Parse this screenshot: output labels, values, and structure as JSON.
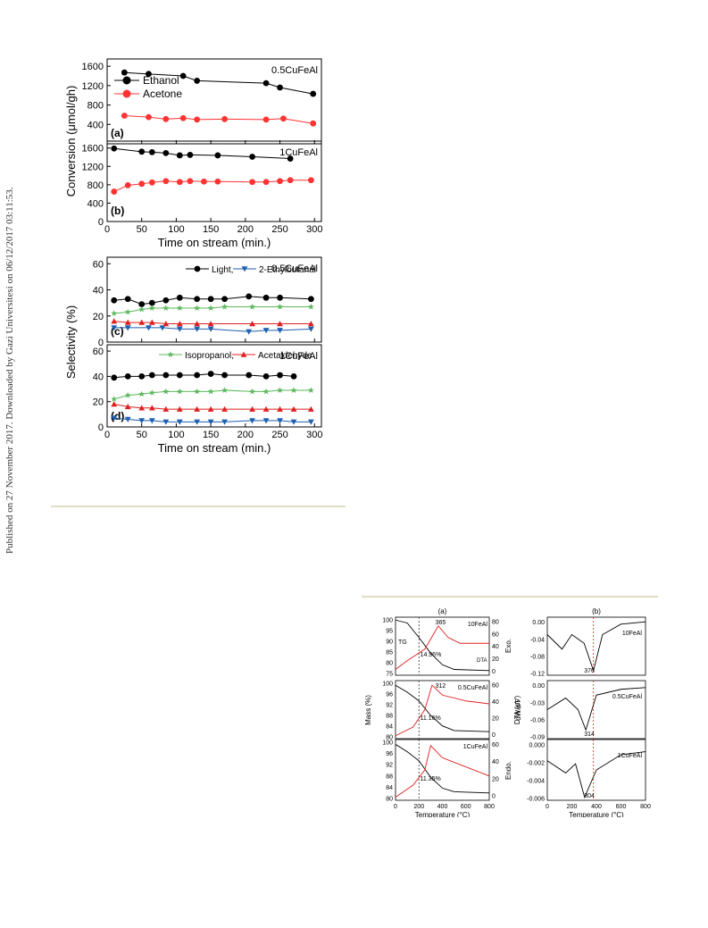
{
  "side_note": "Published on 27 November 2017. Downloaded by Gazi Universitesi on 06/12/2017 03:11:53.",
  "fig1": {
    "panels": [
      {
        "label": "(a)",
        "sample": "0.5CuFeAl",
        "yticks": [
          400,
          800,
          1200,
          1600
        ],
        "ylim": [
          0,
          1750
        ],
        "series": [
          {
            "name": "Ethanol",
            "color": "#000000",
            "marker": "circle",
            "x": [
              25,
              60,
              110,
              130,
              230,
              250,
              298
            ],
            "y": [
              1470,
              1440,
              1400,
              1300,
              1250,
              1160,
              1030
            ]
          },
          {
            "name": "Acetone",
            "color": "#ff3333",
            "marker": "circle",
            "x": [
              25,
              60,
              85,
              110,
              130,
              170,
              230,
              255,
              298
            ],
            "y": [
              580,
              550,
              510,
              530,
              500,
              510,
              500,
              520,
              420
            ]
          }
        ]
      },
      {
        "label": "(b)",
        "sample": "1CuFeAl",
        "yticks": [
          0,
          400,
          800,
          1200,
          1600
        ],
        "ylim": [
          0,
          1750
        ],
        "series": [
          {
            "name": "Ethanol",
            "color": "#000000",
            "marker": "circle",
            "x": [
              10,
              50,
              65,
              85,
              105,
              120,
              160,
              210,
              265
            ],
            "y": [
              1590,
              1520,
              1510,
              1490,
              1440,
              1450,
              1440,
              1410,
              1370
            ]
          },
          {
            "name": "Acetone",
            "color": "#ff3333",
            "marker": "circle",
            "x": [
              10,
              30,
              50,
              65,
              85,
              105,
              120,
              140,
              160,
              210,
              230,
              250,
              265,
              295
            ],
            "y": [
              650,
              790,
              820,
              850,
              880,
              860,
              880,
              870,
              870,
              860,
              860,
              880,
              900,
              900
            ]
          }
        ]
      },
      {
        "label": "(c)",
        "sample": "0.5CuFeAl",
        "yticks": [
          0,
          20,
          40,
          60
        ],
        "ylim": [
          0,
          65
        ],
        "series": [
          {
            "name": "Light,",
            "color": "#000000",
            "marker": "circle",
            "x": [
              10,
              30,
              50,
              65,
              85,
              105,
              130,
              150,
              170,
              205,
              230,
              250,
              295
            ],
            "y": [
              32,
              33,
              29,
              30,
              32,
              34,
              33,
              33,
              33,
              35,
              34,
              34,
              33
            ]
          },
          {
            "name": "2-Ethylbutanal",
            "color": "#1f5fb0",
            "marker": "tri-down",
            "x": [
              10,
              30,
              60,
              80,
              105,
              130,
              150,
              205,
              230,
              250,
              295
            ],
            "y": [
              11,
              11,
              11,
              11,
              10,
              10,
              10,
              8,
              9,
              9,
              10
            ]
          },
          {
            "name": "Isopropanol,",
            "color": "#5cb85c",
            "marker": "star",
            "x": [
              10,
              30,
              50,
              65,
              85,
              105,
              130,
              150,
              170,
              210,
              250,
              295
            ],
            "y": [
              22,
              23,
              25,
              26,
              26,
              26,
              26,
              26,
              27,
              27,
              27,
              27
            ]
          },
          {
            "name": "Acetaldehyde",
            "color": "#e02020",
            "marker": "tri-up",
            "x": [
              10,
              30,
              50,
              65,
              85,
              105,
              130,
              150,
              210,
              250,
              295
            ],
            "y": [
              16,
              15,
              15,
              15,
              14,
              14,
              14,
              14,
              14,
              14,
              14
            ]
          }
        ]
      },
      {
        "label": "(d)",
        "sample": "1CuFeAl",
        "yticks": [
          0,
          20,
          40,
          60
        ],
        "ylim": [
          0,
          65
        ],
        "series": [
          {
            "name": "Light,",
            "color": "#000000",
            "marker": "circle",
            "x": [
              10,
              30,
              50,
              65,
              85,
              105,
              130,
              150,
              170,
              205,
              230,
              250,
              270
            ],
            "y": [
              39,
              40,
              40,
              41,
              41,
              41,
              41,
              42,
              41,
              41,
              40,
              41,
              40
            ]
          },
          {
            "name": "2-Ethylbutanal",
            "color": "#1f5fb0",
            "marker": "tri-down",
            "x": [
              10,
              30,
              50,
              65,
              85,
              105,
              130,
              150,
              170,
              210,
              230,
              250,
              270,
              295
            ],
            "y": [
              7,
              6,
              5,
              5,
              4,
              4,
              4,
              4,
              4,
              5,
              5,
              5,
              4,
              4
            ]
          },
          {
            "name": "Isopropanol,",
            "color": "#5cb85c",
            "marker": "star",
            "x": [
              10,
              30,
              50,
              65,
              85,
              105,
              130,
              150,
              170,
              210,
              230,
              250,
              270,
              295
            ],
            "y": [
              22,
              25,
              26,
              27,
              28,
              28,
              28,
              28,
              29,
              28,
              28,
              29,
              29,
              29
            ]
          },
          {
            "name": "Acetaldehyde",
            "color": "#e02020",
            "marker": "tri-up",
            "x": [
              10,
              30,
              50,
              65,
              85,
              105,
              130,
              150,
              170,
              210,
              230,
              250,
              270,
              295
            ],
            "y": [
              18,
              16,
              15,
              15,
              14,
              14,
              14,
              14,
              14,
              14,
              14,
              14,
              14,
              14
            ]
          }
        ]
      }
    ],
    "xlim": [
      0,
      310
    ],
    "xticks": [
      0,
      50,
      100,
      150,
      200,
      250,
      300
    ],
    "xlabel": "Time on stream (min.)",
    "ylabel_top": "Conversion (μmol/gh)",
    "ylabel_bottom": "Selectivity (%)"
  },
  "fig2": {
    "panel_a_label": "(a)",
    "panel_b_label": "(b)",
    "xlabel": "Temperature (°C)",
    "xticks": [
      0,
      200,
      400,
      600,
      800
    ],
    "ylabel_mass": "Mass (%)",
    "ylabel_dta": "DTA (uV)",
    "ylabel_dwdt": "dW/dT",
    "exo_label": "Exo.",
    "endo_label": "Endo.",
    "tg_tag": "TG",
    "dta_tag": "DTA",
    "rows": [
      {
        "sample": "10FeAl",
        "mass_ticks": [
          75,
          80,
          85,
          90,
          95,
          100
        ],
        "dta_ticks": [
          0,
          20,
          40,
          60,
          80
        ],
        "mass_loss": "14.96%",
        "dta_peak": "365",
        "dwdt_ticks": [
          "0.00",
          "-0.04",
          "-0.08",
          "-0.12"
        ],
        "dwdt_min": "376"
      },
      {
        "sample": "0.5CuFeAl",
        "mass_ticks": [
          80,
          84,
          88,
          92,
          96,
          100
        ],
        "dta_ticks": [
          0,
          20,
          40,
          60
        ],
        "mass_loss": "11.16%",
        "dta_peak": "312",
        "dwdt_ticks": [
          "0.00",
          "-0.03",
          "-0.06",
          "-0.09"
        ],
        "dwdt_min": "314"
      },
      {
        "sample": "1CuFeAl",
        "mass_ticks": [
          80,
          84,
          88,
          92,
          96,
          100
        ],
        "dta_ticks": [
          0,
          20,
          40,
          60
        ],
        "mass_loss": "11.35%",
        "dta_peak": "",
        "dwdt_ticks": [
          "0.000",
          "-0.002",
          "-0.004",
          "-0.006"
        ],
        "dwdt_min": "304"
      }
    ]
  },
  "chart_data": [
    {
      "type": "line",
      "title": "",
      "panel": "(a) 0.5CuFeAl",
      "xlabel": "Time on stream (min.)",
      "ylabel": "Conversion (μmol/gh)",
      "series": [
        {
          "name": "Ethanol",
          "x": [
            25,
            60,
            110,
            130,
            230,
            250,
            298
          ],
          "y": [
            1470,
            1440,
            1400,
            1300,
            1250,
            1160,
            1030
          ]
        },
        {
          "name": "Acetone",
          "x": [
            25,
            60,
            85,
            110,
            130,
            170,
            230,
            255,
            298
          ],
          "y": [
            580,
            550,
            510,
            530,
            500,
            510,
            500,
            520,
            420
          ]
        }
      ]
    },
    {
      "type": "line",
      "title": "",
      "panel": "(b) 1CuFeAl",
      "xlabel": "Time on stream (min.)",
      "ylabel": "Conversion (μmol/gh)",
      "series": [
        {
          "name": "Ethanol",
          "x": [
            10,
            50,
            65,
            85,
            105,
            120,
            160,
            210,
            265
          ],
          "y": [
            1590,
            1520,
            1510,
            1490,
            1440,
            1450,
            1440,
            1410,
            1370
          ]
        },
        {
          "name": "Acetone",
          "x": [
            10,
            30,
            50,
            65,
            85,
            105,
            120,
            140,
            160,
            210,
            230,
            250,
            265,
            295
          ],
          "y": [
            650,
            790,
            820,
            850,
            880,
            860,
            880,
            870,
            870,
            860,
            860,
            880,
            900,
            900
          ]
        }
      ]
    },
    {
      "type": "line",
      "title": "",
      "panel": "(c) 0.5CuFeAl",
      "xlabel": "Time on stream (min.)",
      "ylabel": "Selectivity (%)",
      "series": [
        {
          "name": "Light,"
        },
        {
          "name": "2-Ethylbutanal"
        },
        {
          "name": "Isopropanol,"
        },
        {
          "name": "Acetaldehyde"
        }
      ]
    },
    {
      "type": "line",
      "title": "",
      "panel": "(d) 1CuFeAl",
      "xlabel": "Time on stream (min.)",
      "ylabel": "Selectivity (%)",
      "series": [
        {
          "name": "Light,"
        },
        {
          "name": "2-Ethylbutanal"
        },
        {
          "name": "Isopropanol,"
        },
        {
          "name": "Acetaldehyde"
        }
      ]
    },
    {
      "type": "line",
      "title": "",
      "panel": "(a) TG/DTA",
      "xlabel": "Temperature (°C)",
      "ylabel": "Mass (%)"
    },
    {
      "type": "line",
      "title": "",
      "panel": "(b) DTG",
      "xlabel": "Temperature (°C)",
      "ylabel": "dW/dT"
    }
  ]
}
